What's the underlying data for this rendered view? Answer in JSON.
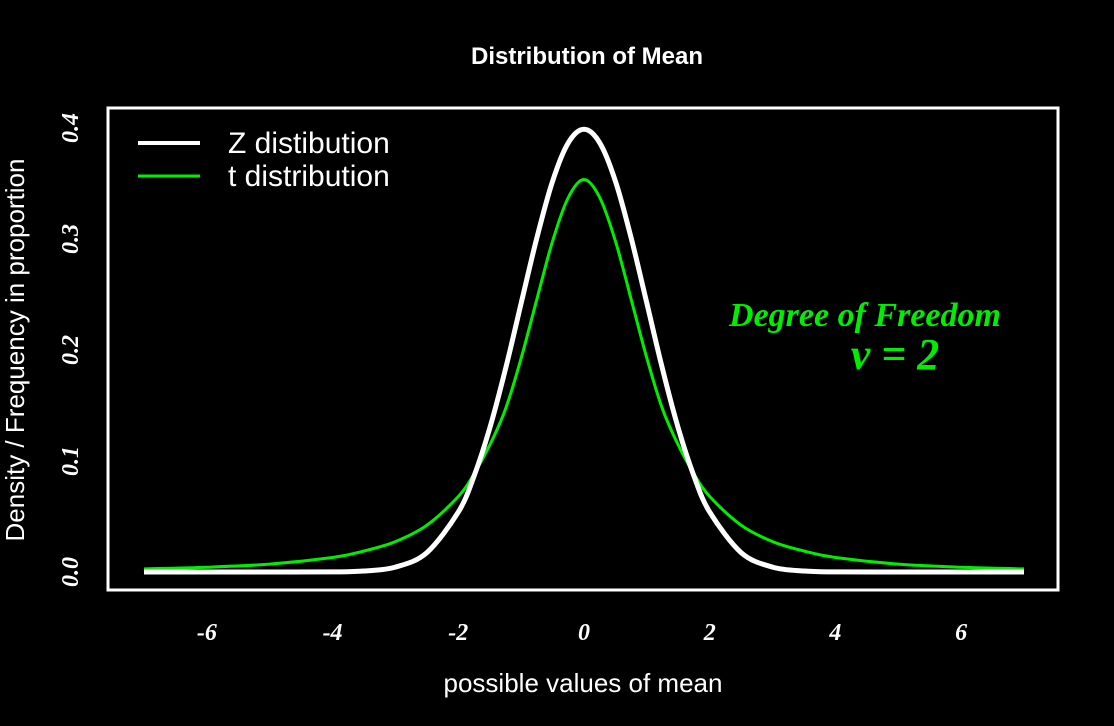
{
  "chart_data": {
    "type": "line",
    "title": "Distribution of Mean",
    "xlabel": "possible values of mean",
    "ylabel": "Density / Frequency in proportion",
    "xlim": [
      -7,
      7
    ],
    "ylim": [
      0,
      0.4
    ],
    "x_ticks": [
      "-6",
      "-4",
      "-2",
      "0",
      "2",
      "4",
      "6"
    ],
    "x_tick_values": [
      -6,
      -4,
      -2,
      0,
      2,
      4,
      6
    ],
    "y_ticks": [
      "0.0",
      "0.1",
      "0.2",
      "0.3",
      "0.4"
    ],
    "y_tick_values": [
      0,
      0.1,
      0.2,
      0.3,
      0.4
    ],
    "grid": false,
    "legend_position": "top-left",
    "series": [
      {
        "name": "Z distibution",
        "color": "#ffffff",
        "x": [
          -7,
          -6,
          -5,
          -4,
          -3.5,
          -3,
          -2.5,
          -2,
          -1.75,
          -1.5,
          -1.25,
          -1,
          -0.75,
          -0.5,
          -0.25,
          0,
          0.25,
          0.5,
          0.75,
          1,
          1.25,
          1.5,
          1.75,
          2,
          2.5,
          3,
          3.5,
          4,
          5,
          6,
          7
        ],
        "values": [
          0.0,
          0.0,
          0.0,
          0.0001,
          0.0009,
          0.0044,
          0.0175,
          0.054,
          0.0863,
          0.1295,
          0.1826,
          0.242,
          0.3011,
          0.3521,
          0.3867,
          0.3989,
          0.3867,
          0.3521,
          0.3011,
          0.242,
          0.1826,
          0.1295,
          0.0863,
          0.054,
          0.0175,
          0.0044,
          0.0009,
          0.0001,
          0.0,
          0.0,
          0.0
        ]
      },
      {
        "name": "t distribution",
        "color": "#00ee00",
        "x": [
          -7,
          -6,
          -5,
          -4,
          -3.5,
          -3,
          -2.5,
          -2,
          -1.75,
          -1.5,
          -1.25,
          -1,
          -0.75,
          -0.5,
          -0.25,
          0,
          0.25,
          0.5,
          0.75,
          1,
          1.25,
          1.5,
          1.75,
          2,
          2.5,
          3,
          3.5,
          4,
          5,
          6,
          7
        ],
        "values": [
          0.0028,
          0.0043,
          0.0071,
          0.0131,
          0.0189,
          0.0274,
          0.0422,
          0.068,
          0.0883,
          0.1143,
          0.1467,
          0.1925,
          0.2458,
          0.2981,
          0.3374,
          0.3536,
          0.3374,
          0.2981,
          0.2458,
          0.1925,
          0.1467,
          0.1143,
          0.0883,
          0.068,
          0.0422,
          0.0274,
          0.0189,
          0.0131,
          0.0071,
          0.0043,
          0.0028
        ]
      }
    ],
    "annotations": [
      {
        "text": "Degree of Freedom",
        "x": 4.5,
        "y": 0.225
      },
      {
        "text": "v = 2",
        "x": 4.3,
        "y": 0.192
      }
    ]
  }
}
